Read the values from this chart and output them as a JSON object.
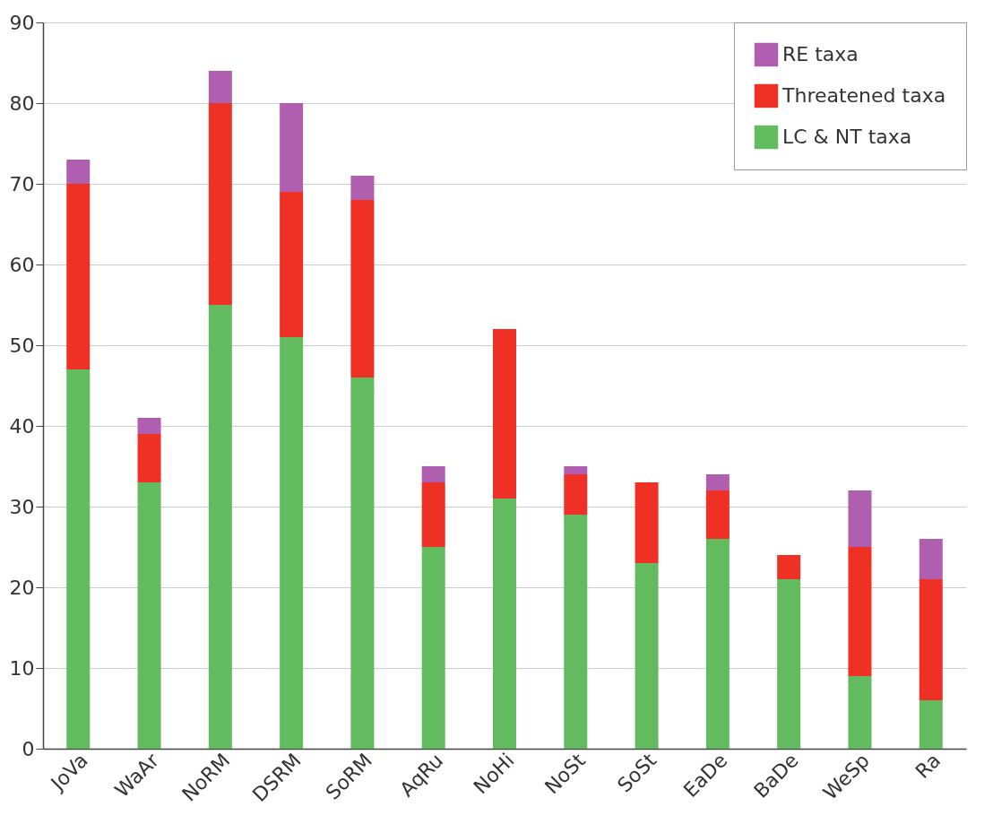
{
  "chart_data": {
    "type": "bar",
    "stacked": true,
    "categories": [
      "JoVa",
      "WaAr",
      "NoRM",
      "DSRM",
      "SoRM",
      "AqRu",
      "NoHi",
      "NoSt",
      "SoSt",
      "EaDe",
      "BaDe",
      "WeSp",
      "Ra"
    ],
    "series": [
      {
        "name": "LC & NT taxa",
        "color": "#62bb5f",
        "values": [
          47,
          33,
          55,
          51,
          46,
          25,
          31,
          29,
          23,
          26,
          21,
          9,
          6
        ]
      },
      {
        "name": "Threatened taxa",
        "color": "#ee3124",
        "values": [
          23,
          6,
          25,
          18,
          22,
          8,
          21,
          5,
          10,
          6,
          3,
          16,
          15
        ]
      },
      {
        "name": "RE taxa",
        "color": "#b05fb0",
        "values": [
          3,
          2,
          4,
          11,
          3,
          2,
          null,
          1,
          null,
          2,
          null,
          7,
          5
        ]
      }
    ],
    "ylim": [
      0,
      90
    ],
    "yticks": [
      0,
      10,
      20,
      30,
      40,
      50,
      60,
      70,
      80,
      90
    ],
    "grid": "y",
    "legend": "top right"
  }
}
